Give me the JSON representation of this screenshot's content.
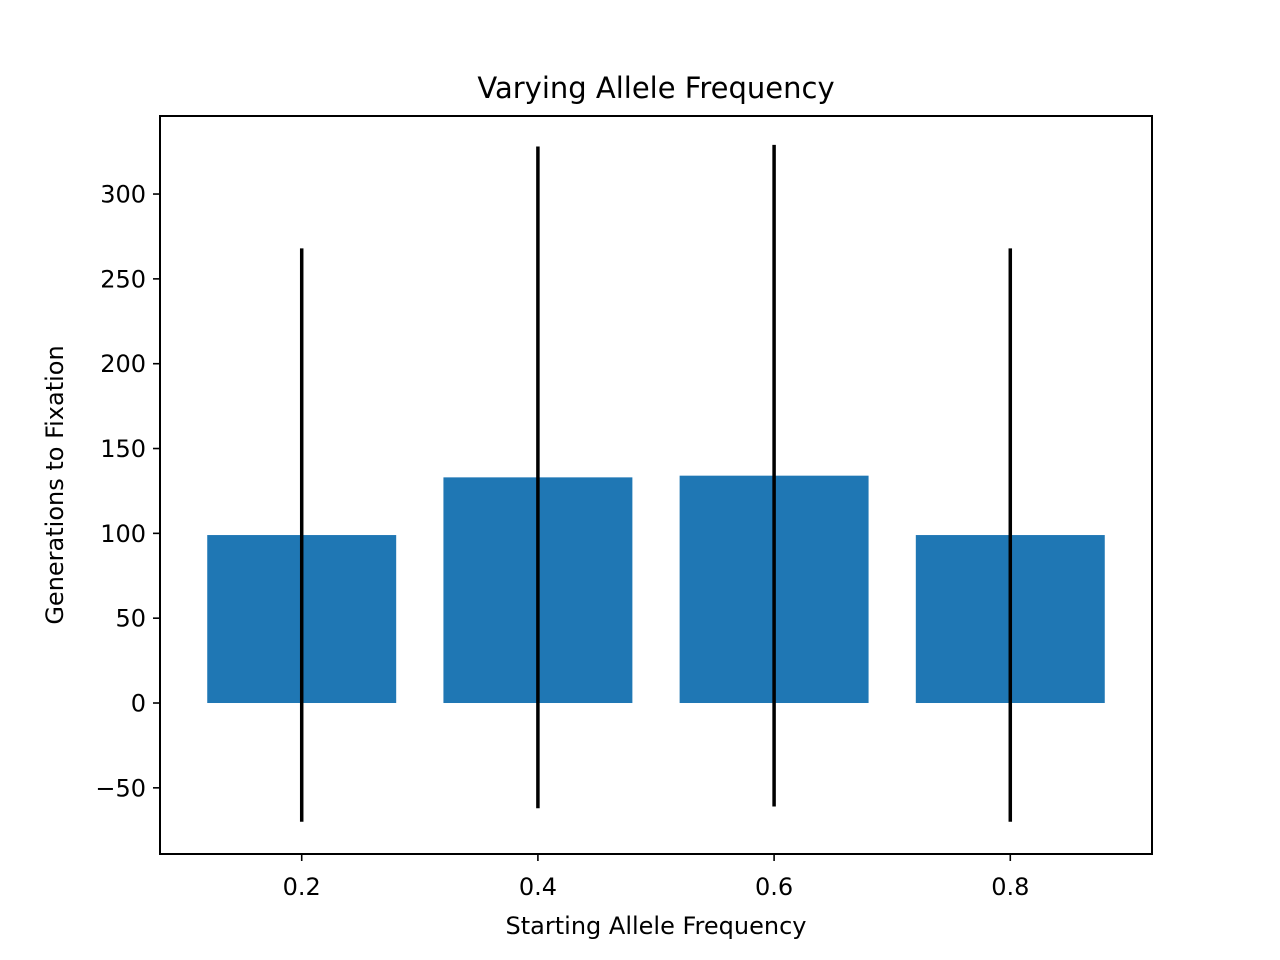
{
  "chart_data": {
    "type": "bar",
    "title": "Varying Allele Frequency",
    "xlabel": "Starting Allele Frequency",
    "ylabel": "Generations to Fixation",
    "categories": [
      0.2,
      0.4,
      0.6,
      0.8
    ],
    "x_tick_labels": [
      "0.2",
      "0.4",
      "0.6",
      "0.8"
    ],
    "bar_width": 0.16,
    "values": [
      99,
      133,
      134,
      99
    ],
    "error": [
      169,
      195,
      195,
      169
    ],
    "xlim": [
      0.08,
      0.92
    ],
    "ylim": [
      -89,
      346
    ],
    "y_ticks": [
      -50,
      0,
      50,
      100,
      150,
      200,
      250,
      300
    ],
    "y_tick_labels": [
      "−50",
      "0",
      "50",
      "100",
      "150",
      "200",
      "250",
      "300"
    ],
    "grid": false,
    "legend": false,
    "colors": {
      "bar": "#1f77b4",
      "error_bar": "#000000",
      "axes": "#000000"
    }
  }
}
